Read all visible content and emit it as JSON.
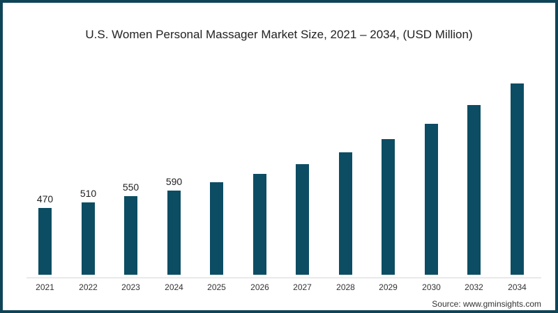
{
  "title": "U.S. Women Personal Massager Market Size, 2021 – 2034, (USD Million)",
  "source": "Source: www.gminsights.com",
  "colors": {
    "bar": "#0c4d63",
    "border": "#0f4457"
  },
  "chart_data": {
    "type": "bar",
    "title": "U.S. Women Personal Massager Market Size, 2021 – 2034, (USD Million)",
    "xlabel": "",
    "ylabel": "USD Million",
    "categories": [
      "2021",
      "2022",
      "2023",
      "2024",
      "2025",
      "2026",
      "2027",
      "2028",
      "2029",
      "2030",
      "2032",
      "2034"
    ],
    "values": [
      470,
      510,
      550,
      590,
      648,
      706,
      773,
      855,
      946,
      1052,
      1182,
      1331
    ],
    "data_labels": [
      "470",
      "510",
      "550",
      "590",
      "",
      "",
      "",
      "",
      "",
      "",
      "",
      ""
    ],
    "grid": false,
    "legend": null
  }
}
